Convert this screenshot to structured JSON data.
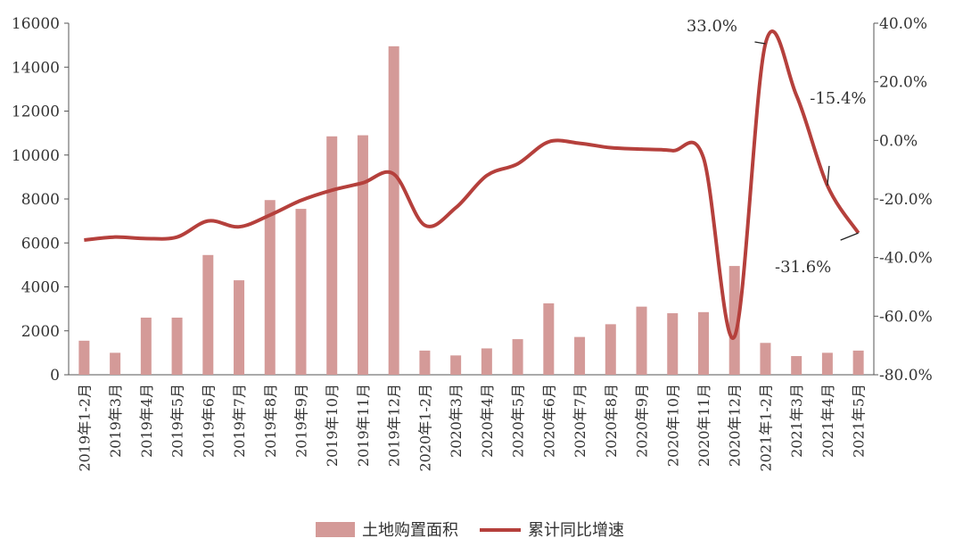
{
  "chart_data": {
    "type": "bar+line",
    "title": "",
    "xlabel": "",
    "ylabel": "",
    "categories": [
      "2019年1-2月",
      "2019年3月",
      "2019年4月",
      "2019年5月",
      "2019年6月",
      "2019年7月",
      "2019年8月",
      "2019年9月",
      "2019年10月",
      "2019年11月",
      "2019年12月",
      "2020年1-2月",
      "2020年3月",
      "2020年4月",
      "2020年5月",
      "2020年6月",
      "2020年7月",
      "2020年8月",
      "2020年9月",
      "2020年10月",
      "2020年11月",
      "2020年12月",
      "2021年1-2月",
      "2021年3月",
      "2021年4月",
      "2021年5月"
    ],
    "series": [
      {
        "name": "土地购置面积",
        "type": "bar",
        "axis": "left",
        "color": "#d49a98",
        "values": [
          1550,
          1000,
          2600,
          2600,
          5450,
          4300,
          7950,
          7550,
          10850,
          10900,
          14950,
          1100,
          880,
          1200,
          1620,
          3250,
          1720,
          2300,
          3100,
          2800,
          2850,
          4950,
          1450,
          850,
          1000,
          1100
        ]
      },
      {
        "name": "累计同比增速",
        "type": "line",
        "axis": "right",
        "color": "#b5403c",
        "values": [
          -34.0,
          -33.0,
          -33.5,
          -33.0,
          -27.5,
          -29.5,
          -25.5,
          -20.5,
          -17.0,
          -14.5,
          -11.5,
          -29.0,
          -23.0,
          -12.0,
          -8.0,
          -0.5,
          -1.0,
          -2.5,
          -3.0,
          -3.5,
          -6.0,
          -67.0,
          33.0,
          15.4,
          -15.4,
          -31.6
        ]
      }
    ],
    "y_left": {
      "min": 0,
      "max": 16000,
      "ticks": [
        "0",
        "2000",
        "4000",
        "6000",
        "8000",
        "10000",
        "12000",
        "14000",
        "16000"
      ]
    },
    "y_right": {
      "min": -80,
      "max": 40,
      "ticks": [
        "-80.0%",
        "-60.0%",
        "-40.0%",
        "-20.0%",
        "0.0%",
        "20.0%",
        "40.0%"
      ]
    },
    "annotations": [
      {
        "text": "33.0%",
        "index": 22
      },
      {
        "text": "-15.4%",
        "index": 24
      },
      {
        "text": "-31.6%",
        "index": 25
      }
    ],
    "legend": {
      "placement": "bottom-center",
      "items": [
        "土地购置面积",
        "累计同比增速"
      ]
    },
    "grid": false
  }
}
